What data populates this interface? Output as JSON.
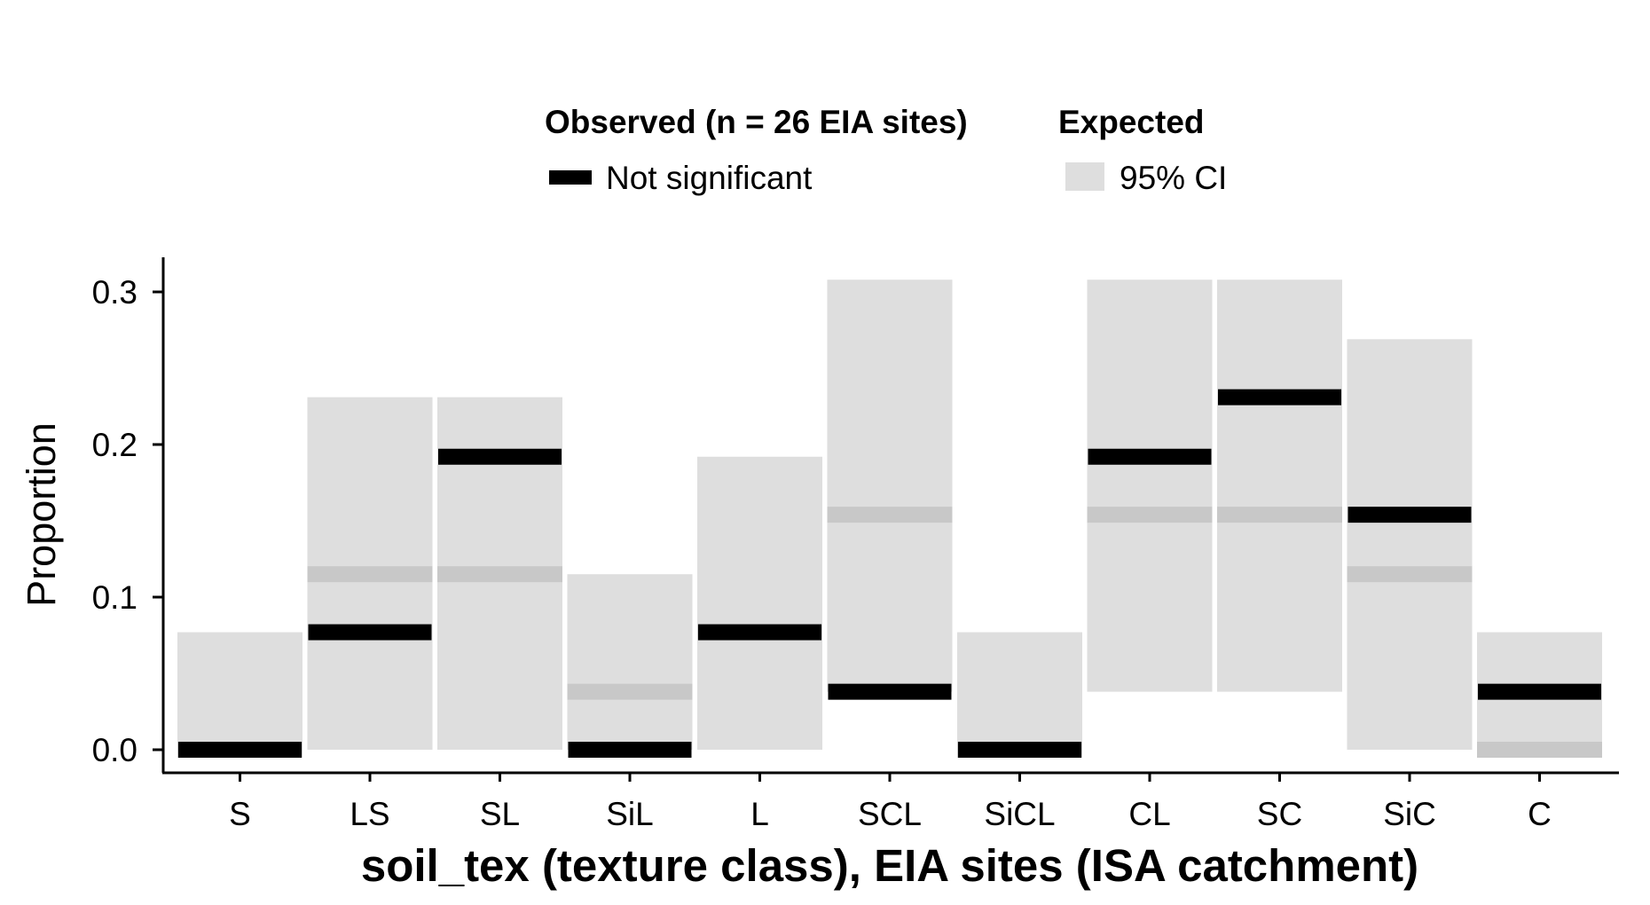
{
  "chart_data": {
    "type": "bar",
    "title": "",
    "xlabel": "soil_tex (texture class), EIA sites (ISA catchment)",
    "ylabel": "Proportion",
    "ylim": [
      -0.015,
      0.32
    ],
    "yticks": [
      0.0,
      0.1,
      0.2,
      0.3
    ],
    "ytick_labels": [
      "0.0",
      "0.1",
      "0.2",
      "0.3"
    ],
    "grid": false,
    "legend_position": "top",
    "legend": {
      "observed_title": "Observed (n = 26 EIA sites)",
      "observed_label": "Not significant",
      "expected_title": "Expected",
      "expected_label": "95% CI"
    },
    "colors": {
      "observed": "#000000",
      "ci_band": "#dedede",
      "expected_line": "#c8c8c8"
    },
    "categories": [
      "S",
      "LS",
      "SL",
      "SiL",
      "L",
      "SCL",
      "SiCL",
      "CL",
      "SC",
      "SiC",
      "C"
    ],
    "series": [
      {
        "name": "Observed (n = 26 EIA sites)",
        "values": [
          0.0,
          0.077,
          0.192,
          0.0,
          0.077,
          0.038,
          0.0,
          0.192,
          0.231,
          0.154,
          0.038
        ]
      },
      {
        "name": "Expected",
        "values": [
          0.0,
          0.115,
          0.115,
          0.038,
          0.077,
          0.154,
          0.0,
          0.154,
          0.154,
          0.115,
          0.0
        ]
      },
      {
        "name": "95% CI lower",
        "values": [
          0.0,
          0.0,
          0.0,
          0.0,
          0.0,
          0.038,
          0.0,
          0.038,
          0.038,
          0.0,
          -0.005
        ]
      },
      {
        "name": "95% CI upper",
        "values": [
          0.077,
          0.231,
          0.231,
          0.115,
          0.192,
          0.308,
          0.077,
          0.308,
          0.308,
          0.269,
          0.077
        ]
      }
    ]
  }
}
